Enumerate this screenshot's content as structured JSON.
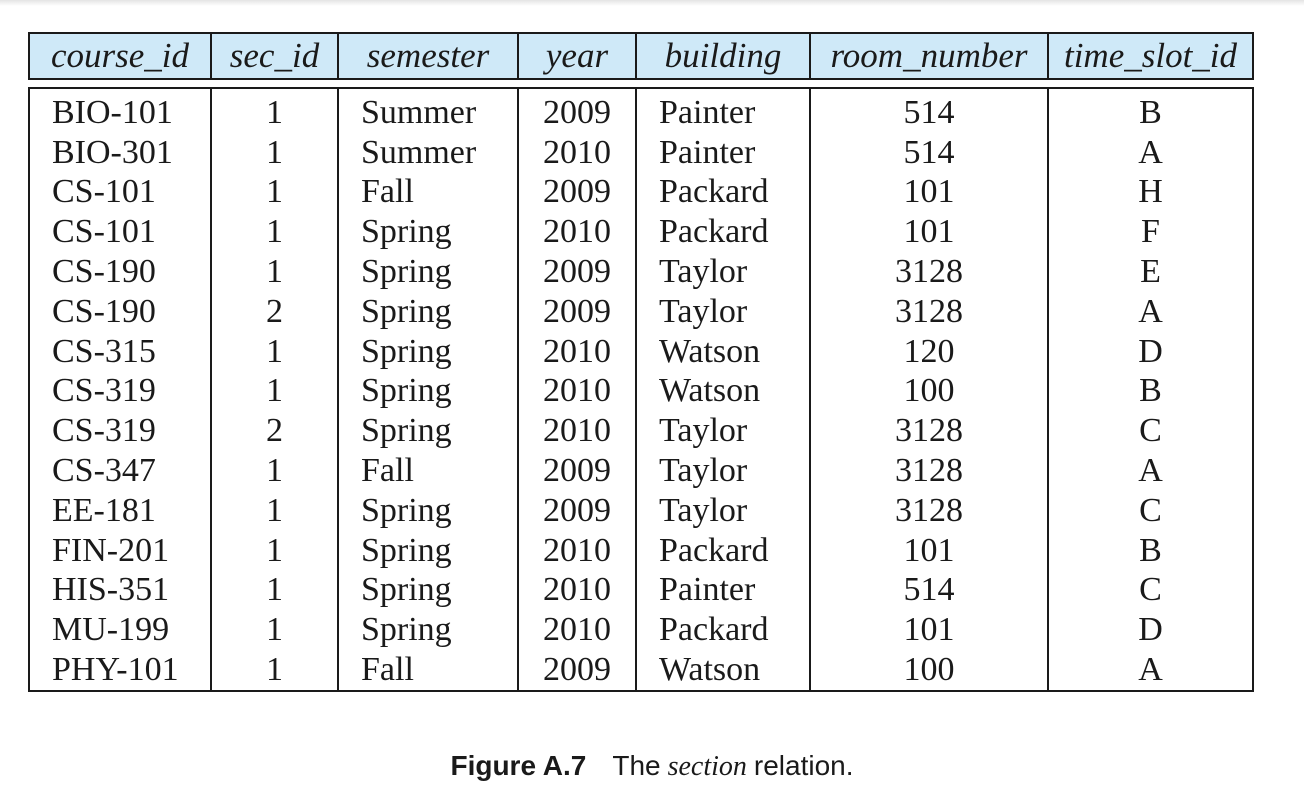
{
  "table": {
    "columns": [
      "course_id",
      "sec_id",
      "semester",
      "year",
      "building",
      "room_number",
      "time_slot_id"
    ],
    "rows": [
      [
        "BIO-101",
        "1",
        "Summer",
        "2009",
        "Painter",
        "514",
        "B"
      ],
      [
        "BIO-301",
        "1",
        "Summer",
        "2010",
        "Painter",
        "514",
        "A"
      ],
      [
        "CS-101",
        "1",
        "Fall",
        "2009",
        "Packard",
        "101",
        "H"
      ],
      [
        "CS-101",
        "1",
        "Spring",
        "2010",
        "Packard",
        "101",
        "F"
      ],
      [
        "CS-190",
        "1",
        "Spring",
        "2009",
        "Taylor",
        "3128",
        "E"
      ],
      [
        "CS-190",
        "2",
        "Spring",
        "2009",
        "Taylor",
        "3128",
        "A"
      ],
      [
        "CS-315",
        "1",
        "Spring",
        "2010",
        "Watson",
        "120",
        "D"
      ],
      [
        "CS-319",
        "1",
        "Spring",
        "2010",
        "Watson",
        "100",
        "B"
      ],
      [
        "CS-319",
        "2",
        "Spring",
        "2010",
        "Taylor",
        "3128",
        "C"
      ],
      [
        "CS-347",
        "1",
        "Fall",
        "2009",
        "Taylor",
        "3128",
        "A"
      ],
      [
        "EE-181",
        "1",
        "Spring",
        "2009",
        "Taylor",
        "3128",
        "C"
      ],
      [
        "FIN-201",
        "1",
        "Spring",
        "2010",
        "Packard",
        "101",
        "B"
      ],
      [
        "HIS-351",
        "1",
        "Spring",
        "2010",
        "Painter",
        "514",
        "C"
      ],
      [
        "MU-199",
        "1",
        "Spring",
        "2010",
        "Packard",
        "101",
        "D"
      ],
      [
        "PHY-101",
        "1",
        "Fall",
        "2009",
        "Watson",
        "100",
        "A"
      ]
    ]
  },
  "caption": {
    "label": "Figure A.7",
    "text_before": "The",
    "emphasis": "section",
    "text_after": "relation."
  },
  "colors": {
    "header_background": "#cfe9f8",
    "border": "#1a1a1a"
  }
}
